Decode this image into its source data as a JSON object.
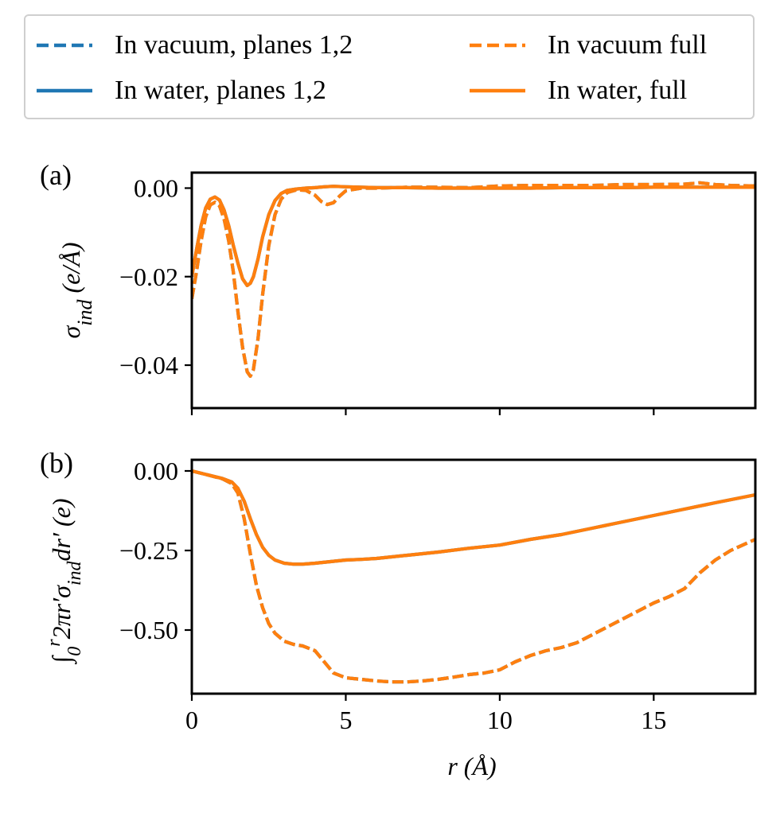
{
  "legend": [
    {
      "label": "In vacuum, planes 1,2",
      "color": "#1f77b4",
      "dash": true
    },
    {
      "label": "In water, planes 1,2",
      "color": "#1f77b4",
      "dash": false
    },
    {
      "label": "In vacuum full",
      "color": "#ff7f0e",
      "dash": true
    },
    {
      "label": "In water, full",
      "color": "#ff7f0e",
      "dash": false
    }
  ],
  "chart_data": [
    {
      "type": "line",
      "panel_label": "(a)",
      "ylabel_html": "σ<tspan baseline-shift='sub' font-size='26'>ind</tspan> (e/Å)",
      "xlim": [
        0,
        18.3
      ],
      "ylim": [
        -0.0497,
        0.0035
      ],
      "yticks": [
        0.0,
        -0.02,
        -0.04
      ],
      "ytick_labels": [
        "0.00",
        "−0.02",
        "−0.04"
      ],
      "xticks": [
        0,
        5,
        10,
        15
      ],
      "series": [
        {
          "name": "In vacuum, planes 1,2",
          "color": "#1f77b4",
          "dash": true,
          "x": [
            0,
            0.15,
            0.3,
            0.45,
            0.6,
            0.75,
            0.9,
            1.05,
            1.2,
            1.35,
            1.5,
            1.65,
            1.8,
            1.9,
            2.0,
            2.15,
            2.3,
            2.5,
            2.7,
            2.9,
            3.1,
            3.4,
            3.7,
            4.0,
            4.2,
            4.4,
            4.6,
            4.8,
            5.0,
            5.5,
            6,
            7,
            8,
            9,
            10,
            11,
            12,
            13,
            14,
            15,
            16,
            16.5,
            17,
            17.5,
            18.3
          ],
          "y": [
            -0.025,
            -0.019,
            -0.012,
            -0.0065,
            -0.0038,
            -0.0032,
            -0.004,
            -0.007,
            -0.012,
            -0.019,
            -0.028,
            -0.036,
            -0.0415,
            -0.0425,
            -0.041,
            -0.034,
            -0.024,
            -0.013,
            -0.006,
            -0.0025,
            -0.001,
            -0.0004,
            -0.0005,
            -0.0016,
            -0.003,
            -0.0037,
            -0.0033,
            -0.0018,
            -0.0006,
            0.0,
            0.0,
            0.0002,
            0.0002,
            0.0001,
            0.0005,
            0.0006,
            0.0006,
            0.0006,
            0.0008,
            0.0008,
            0.0009,
            0.0012,
            0.0008,
            0.0006,
            0.0005
          ]
        },
        {
          "name": "In water, planes 1,2",
          "color": "#1f77b4",
          "dash": false,
          "x": [
            0,
            0.15,
            0.3,
            0.45,
            0.6,
            0.75,
            0.9,
            1.05,
            1.2,
            1.35,
            1.5,
            1.65,
            1.8,
            1.9,
            2.0,
            2.15,
            2.3,
            2.5,
            2.7,
            2.9,
            3.1,
            3.4,
            3.7,
            4.0,
            4.3,
            4.6,
            5.0,
            5.5,
            6,
            7,
            8,
            9,
            10,
            11,
            12,
            13,
            14,
            15,
            16,
            17,
            18.3
          ],
          "y": [
            -0.02,
            -0.014,
            -0.0085,
            -0.0045,
            -0.0025,
            -0.002,
            -0.0027,
            -0.005,
            -0.0085,
            -0.013,
            -0.017,
            -0.0205,
            -0.022,
            -0.0215,
            -0.02,
            -0.016,
            -0.011,
            -0.006,
            -0.0028,
            -0.0012,
            -0.0005,
            -0.0002,
            0.0,
            0.0001,
            0.0003,
            0.0004,
            0.0003,
            0.0002,
            0.0001,
            0.0001,
            0.0,
            0.0,
            0.0,
            0.0,
            0.0001,
            0.0001,
            0.0001,
            0.0002,
            0.0002,
            0.0002,
            0.0002
          ]
        },
        {
          "name": "In vacuum full",
          "color": "#ff7f0e",
          "dash": true,
          "x": [
            0,
            0.15,
            0.3,
            0.45,
            0.6,
            0.75,
            0.9,
            1.05,
            1.2,
            1.35,
            1.5,
            1.65,
            1.8,
            1.9,
            2.0,
            2.15,
            2.3,
            2.5,
            2.7,
            2.9,
            3.1,
            3.4,
            3.7,
            4.0,
            4.2,
            4.4,
            4.6,
            4.8,
            5.0,
            5.5,
            6,
            7,
            8,
            9,
            10,
            11,
            12,
            13,
            14,
            15,
            16,
            16.5,
            17,
            17.5,
            18.3
          ],
          "y": [
            -0.025,
            -0.019,
            -0.012,
            -0.0065,
            -0.0038,
            -0.0032,
            -0.004,
            -0.007,
            -0.012,
            -0.019,
            -0.028,
            -0.036,
            -0.0415,
            -0.0425,
            -0.041,
            -0.034,
            -0.024,
            -0.013,
            -0.006,
            -0.0025,
            -0.001,
            -0.0004,
            -0.0005,
            -0.0016,
            -0.003,
            -0.0037,
            -0.0033,
            -0.0018,
            -0.0006,
            0.0,
            0.0,
            0.0002,
            0.0002,
            0.0001,
            0.0005,
            0.0006,
            0.0006,
            0.0006,
            0.0008,
            0.0008,
            0.0009,
            0.0012,
            0.0008,
            0.0006,
            0.0005
          ]
        },
        {
          "name": "In water, full",
          "color": "#ff7f0e",
          "dash": false,
          "x": [
            0,
            0.15,
            0.3,
            0.45,
            0.6,
            0.75,
            0.9,
            1.05,
            1.2,
            1.35,
            1.5,
            1.65,
            1.8,
            1.9,
            2.0,
            2.15,
            2.3,
            2.5,
            2.7,
            2.9,
            3.1,
            3.4,
            3.7,
            4.0,
            4.3,
            4.6,
            5.0,
            5.5,
            6,
            7,
            8,
            9,
            10,
            11,
            12,
            13,
            14,
            15,
            16,
            17,
            18.3
          ],
          "y": [
            -0.02,
            -0.014,
            -0.0085,
            -0.0045,
            -0.0025,
            -0.002,
            -0.0027,
            -0.005,
            -0.0085,
            -0.013,
            -0.017,
            -0.0205,
            -0.022,
            -0.0215,
            -0.02,
            -0.016,
            -0.011,
            -0.006,
            -0.0028,
            -0.0012,
            -0.0005,
            -0.0002,
            0.0,
            0.0001,
            0.0003,
            0.0004,
            0.0003,
            0.0002,
            0.0001,
            0.0001,
            0.0,
            0.0,
            0.0,
            0.0,
            0.0001,
            0.0001,
            0.0001,
            0.0002,
            0.0002,
            0.0002,
            0.0002
          ]
        }
      ]
    },
    {
      "type": "line",
      "panel_label": "(b)",
      "ylabel_html": "∫<tspan baseline-shift='sub' font-size='24'>0</tspan><tspan baseline-shift='super' font-size='24'>r</tspan>2πr′σ<tspan baseline-shift='sub' font-size='24'>ind</tspan>dr′ (e)",
      "xlabel_html": "r (Å)",
      "xlim": [
        0,
        18.3
      ],
      "ylim": [
        -0.7,
        0.035
      ],
      "yticks": [
        0.0,
        -0.25,
        -0.5
      ],
      "ytick_labels": [
        "0.00",
        "−0.25",
        "−0.50"
      ],
      "xticks": [
        0,
        5,
        10,
        15
      ],
      "xtick_labels": [
        "0",
        "5",
        "10",
        "15"
      ],
      "series": [
        {
          "name": "In vacuum, planes 1,2",
          "color": "#1f77b4",
          "dash": true,
          "x": [
            0,
            0.5,
            1.0,
            1.3,
            1.5,
            1.7,
            1.9,
            2.1,
            2.3,
            2.5,
            2.7,
            3.0,
            3.3,
            3.6,
            4.0,
            4.3,
            4.6,
            5.0,
            5.5,
            6.0,
            6.5,
            7.0,
            7.5,
            8.0,
            8.5,
            9.0,
            9.5,
            10.0,
            10.5,
            11.0,
            11.5,
            12.0,
            12.5,
            13.0,
            13.5,
            14.0,
            14.5,
            15.0,
            15.5,
            16.0,
            16.5,
            17.0,
            17.5,
            18.3
          ],
          "y": [
            0.0,
            -0.012,
            -0.025,
            -0.04,
            -0.07,
            -0.15,
            -0.26,
            -0.36,
            -0.43,
            -0.48,
            -0.51,
            -0.535,
            -0.545,
            -0.55,
            -0.565,
            -0.6,
            -0.635,
            -0.65,
            -0.655,
            -0.66,
            -0.663,
            -0.663,
            -0.66,
            -0.655,
            -0.648,
            -0.64,
            -0.635,
            -0.625,
            -0.6,
            -0.58,
            -0.565,
            -0.555,
            -0.54,
            -0.515,
            -0.49,
            -0.465,
            -0.44,
            -0.415,
            -0.395,
            -0.37,
            -0.32,
            -0.28,
            -0.25,
            -0.215
          ]
        },
        {
          "name": "In water, planes 1,2",
          "color": "#1f77b4",
          "dash": false,
          "x": [
            0,
            0.5,
            1.0,
            1.3,
            1.5,
            1.7,
            1.9,
            2.1,
            2.3,
            2.5,
            2.7,
            3.0,
            3.3,
            3.6,
            4.0,
            4.5,
            5.0,
            5.5,
            6,
            7,
            8,
            9,
            10,
            11,
            12,
            13,
            14,
            15,
            16,
            17,
            18.3
          ],
          "y": [
            0.0,
            -0.012,
            -0.024,
            -0.035,
            -0.055,
            -0.095,
            -0.15,
            -0.2,
            -0.24,
            -0.265,
            -0.28,
            -0.29,
            -0.293,
            -0.293,
            -0.29,
            -0.285,
            -0.28,
            -0.278,
            -0.275,
            -0.265,
            -0.255,
            -0.243,
            -0.233,
            -0.215,
            -0.2,
            -0.18,
            -0.16,
            -0.14,
            -0.12,
            -0.1,
            -0.075
          ]
        },
        {
          "name": "In vacuum full",
          "color": "#ff7f0e",
          "dash": true,
          "x": [
            0,
            0.5,
            1.0,
            1.3,
            1.5,
            1.7,
            1.9,
            2.1,
            2.3,
            2.5,
            2.7,
            3.0,
            3.3,
            3.6,
            4.0,
            4.3,
            4.6,
            5.0,
            5.5,
            6.0,
            6.5,
            7.0,
            7.5,
            8.0,
            8.5,
            9.0,
            9.5,
            10.0,
            10.5,
            11.0,
            11.5,
            12.0,
            12.5,
            13.0,
            13.5,
            14.0,
            14.5,
            15.0,
            15.5,
            16.0,
            16.5,
            17.0,
            17.5,
            18.3
          ],
          "y": [
            0.0,
            -0.012,
            -0.025,
            -0.04,
            -0.07,
            -0.15,
            -0.26,
            -0.36,
            -0.43,
            -0.48,
            -0.51,
            -0.535,
            -0.545,
            -0.55,
            -0.565,
            -0.6,
            -0.635,
            -0.65,
            -0.655,
            -0.66,
            -0.663,
            -0.663,
            -0.66,
            -0.655,
            -0.648,
            -0.64,
            -0.635,
            -0.625,
            -0.6,
            -0.58,
            -0.565,
            -0.555,
            -0.54,
            -0.515,
            -0.49,
            -0.465,
            -0.44,
            -0.415,
            -0.395,
            -0.37,
            -0.32,
            -0.28,
            -0.25,
            -0.215
          ]
        },
        {
          "name": "In water, full",
          "color": "#ff7f0e",
          "dash": false,
          "x": [
            0,
            0.5,
            1.0,
            1.3,
            1.5,
            1.7,
            1.9,
            2.1,
            2.3,
            2.5,
            2.7,
            3.0,
            3.3,
            3.6,
            4.0,
            4.5,
            5.0,
            5.5,
            6,
            7,
            8,
            9,
            10,
            11,
            12,
            13,
            14,
            15,
            16,
            17,
            18.3
          ],
          "y": [
            0.0,
            -0.012,
            -0.024,
            -0.035,
            -0.055,
            -0.095,
            -0.15,
            -0.2,
            -0.24,
            -0.265,
            -0.28,
            -0.29,
            -0.293,
            -0.293,
            -0.29,
            -0.285,
            -0.28,
            -0.278,
            -0.275,
            -0.265,
            -0.255,
            -0.243,
            -0.233,
            -0.215,
            -0.2,
            -0.18,
            -0.16,
            -0.14,
            -0.12,
            -0.1,
            -0.075
          ]
        }
      ]
    }
  ]
}
